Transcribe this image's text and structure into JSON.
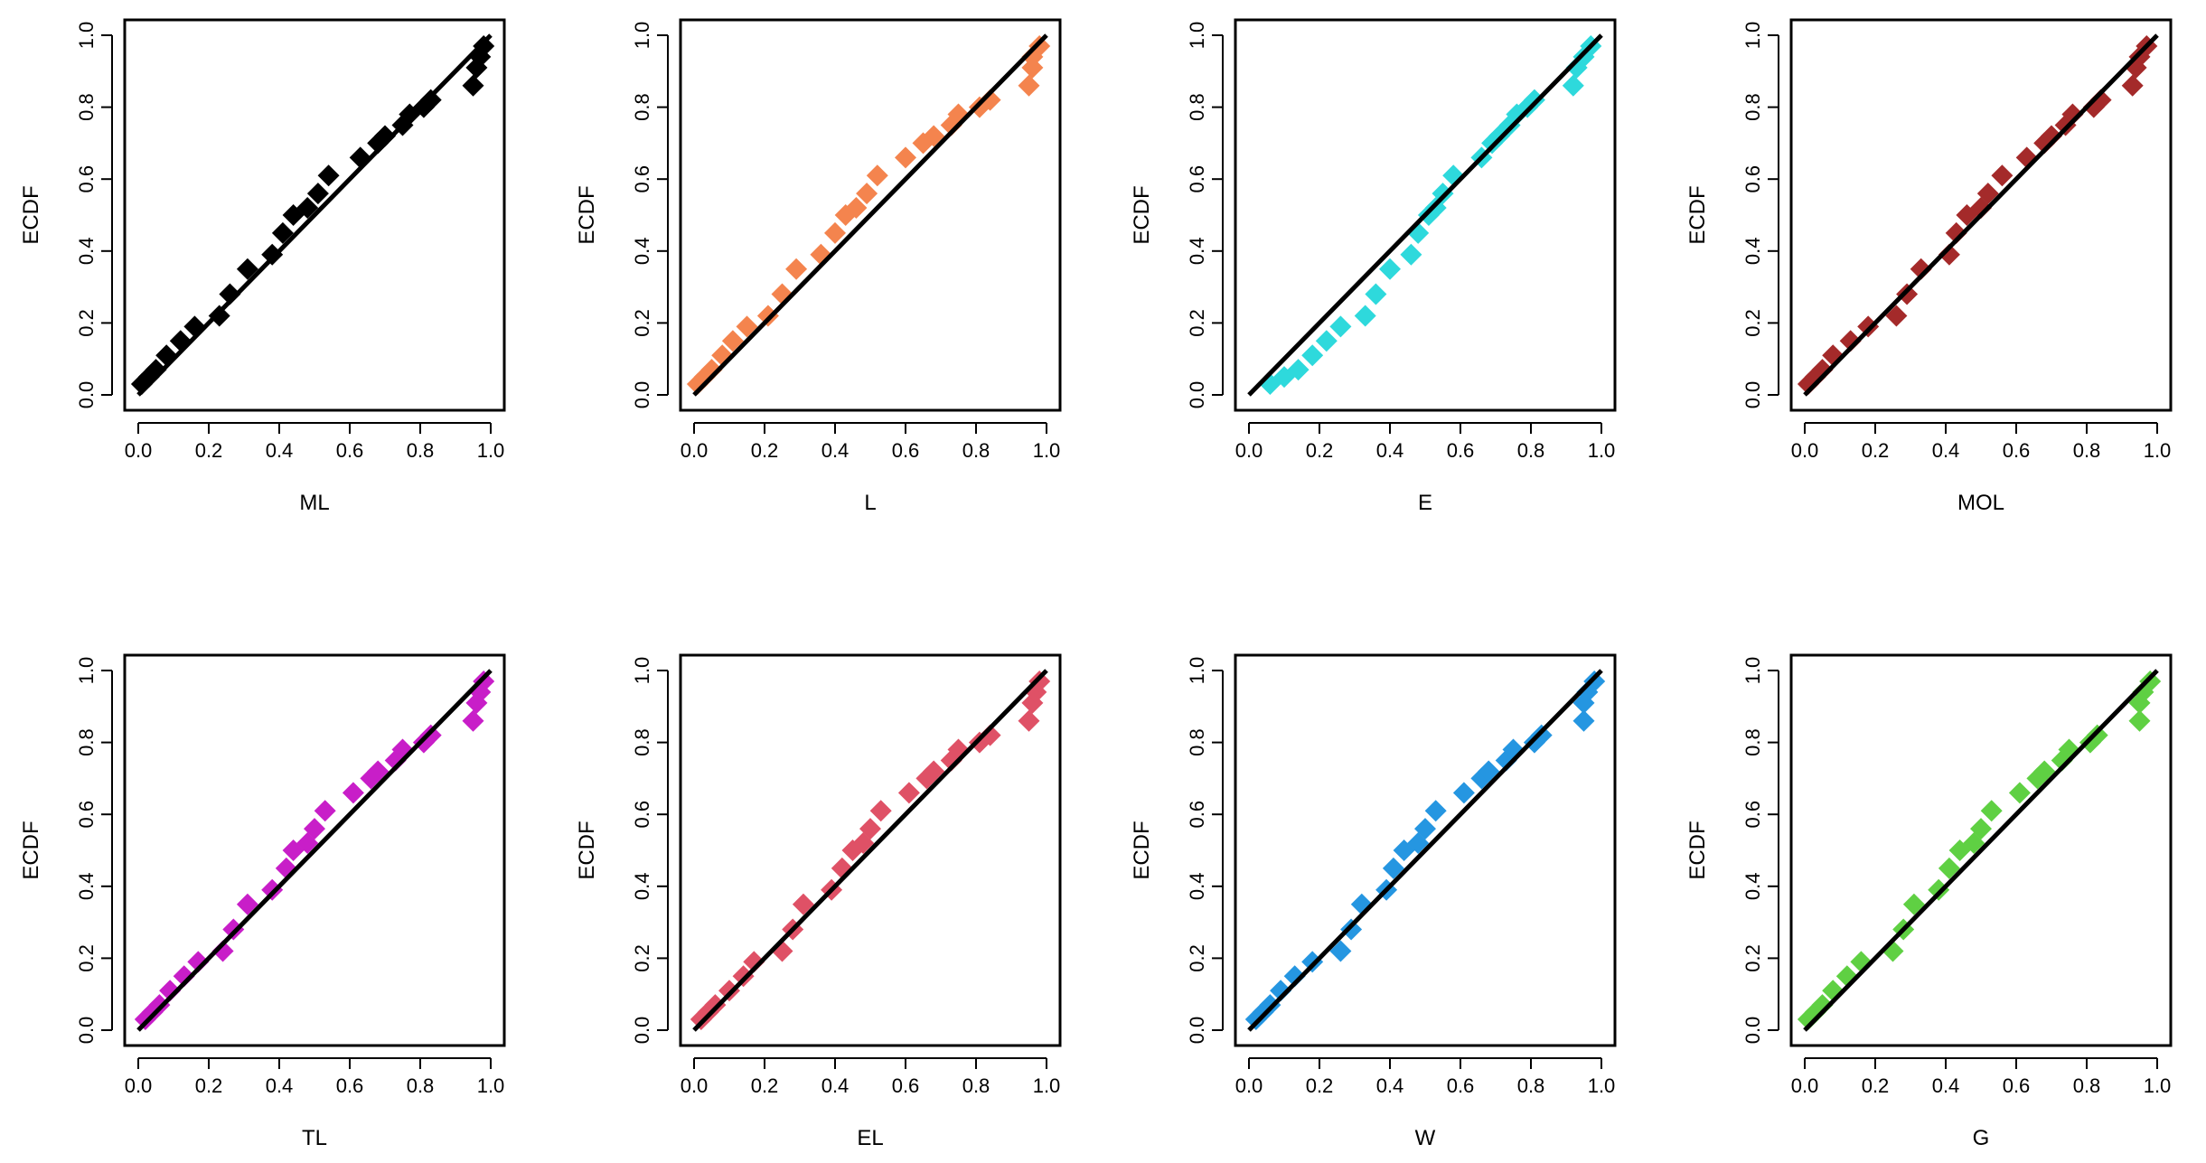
{
  "chart_data": [
    {
      "type": "scatter",
      "xlabel": "ML",
      "ylabel": "ECDF",
      "color": "#000000",
      "xlim": [
        0,
        1
      ],
      "ylim": [
        0,
        1
      ],
      "ticks": [
        "0.0",
        "0.2",
        "0.4",
        "0.6",
        "0.8",
        "1.0"
      ],
      "reference_line": "y = x",
      "x": [
        0.01,
        0.03,
        0.05,
        0.08,
        0.12,
        0.16,
        0.23,
        0.26,
        0.31,
        0.38,
        0.41,
        0.44,
        0.48,
        0.51,
        0.54,
        0.63,
        0.68,
        0.7,
        0.75,
        0.77,
        0.81,
        0.83,
        0.95,
        0.96,
        0.97,
        0.98
      ],
      "y": [
        0.03,
        0.05,
        0.07,
        0.11,
        0.15,
        0.19,
        0.22,
        0.28,
        0.35,
        0.39,
        0.45,
        0.5,
        0.52,
        0.56,
        0.61,
        0.66,
        0.7,
        0.72,
        0.75,
        0.78,
        0.8,
        0.82,
        0.86,
        0.91,
        0.94,
        0.97
      ]
    },
    {
      "type": "scatter",
      "xlabel": "L",
      "ylabel": "ECDF",
      "color": "#F4844E",
      "xlim": [
        0,
        1
      ],
      "ylim": [
        0,
        1
      ],
      "ticks": [
        "0.0",
        "0.2",
        "0.4",
        "0.6",
        "0.8",
        "1.0"
      ],
      "reference_line": "y = x",
      "x": [
        0.01,
        0.03,
        0.05,
        0.08,
        0.11,
        0.15,
        0.21,
        0.25,
        0.29,
        0.36,
        0.4,
        0.43,
        0.46,
        0.49,
        0.52,
        0.6,
        0.65,
        0.68,
        0.73,
        0.75,
        0.81,
        0.84,
        0.95,
        0.96,
        0.96,
        0.98
      ],
      "y": [
        0.03,
        0.05,
        0.07,
        0.11,
        0.15,
        0.19,
        0.22,
        0.28,
        0.35,
        0.39,
        0.45,
        0.5,
        0.52,
        0.56,
        0.61,
        0.66,
        0.7,
        0.72,
        0.75,
        0.78,
        0.8,
        0.82,
        0.86,
        0.91,
        0.94,
        0.97
      ]
    },
    {
      "type": "scatter",
      "xlabel": "E",
      "ylabel": "ECDF",
      "color": "#2ED9DC",
      "xlim": [
        0,
        1
      ],
      "ylim": [
        0,
        1
      ],
      "ticks": [
        "0.0",
        "0.2",
        "0.4",
        "0.6",
        "0.8",
        "1.0"
      ],
      "reference_line": "y = x",
      "x": [
        0.06,
        0.1,
        0.14,
        0.18,
        0.22,
        0.26,
        0.33,
        0.36,
        0.4,
        0.46,
        0.48,
        0.51,
        0.53,
        0.55,
        0.58,
        0.66,
        0.69,
        0.71,
        0.74,
        0.76,
        0.79,
        0.81,
        0.92,
        0.93,
        0.95,
        0.97
      ],
      "y": [
        0.03,
        0.05,
        0.07,
        0.11,
        0.15,
        0.19,
        0.22,
        0.28,
        0.35,
        0.39,
        0.45,
        0.5,
        0.52,
        0.56,
        0.61,
        0.66,
        0.7,
        0.72,
        0.75,
        0.78,
        0.8,
        0.82,
        0.86,
        0.91,
        0.94,
        0.97
      ]
    },
    {
      "type": "scatter",
      "xlabel": "MOL",
      "ylabel": "ECDF",
      "color": "#A42A2A",
      "xlim": [
        0,
        1
      ],
      "ylim": [
        0,
        1
      ],
      "ticks": [
        "0.0",
        "0.2",
        "0.4",
        "0.6",
        "0.8",
        "1.0"
      ],
      "reference_line": "y = x",
      "x": [
        0.01,
        0.03,
        0.05,
        0.08,
        0.13,
        0.18,
        0.26,
        0.29,
        0.33,
        0.41,
        0.43,
        0.46,
        0.5,
        0.52,
        0.56,
        0.63,
        0.68,
        0.7,
        0.74,
        0.76,
        0.82,
        0.84,
        0.93,
        0.94,
        0.95,
        0.97
      ],
      "y": [
        0.03,
        0.05,
        0.07,
        0.11,
        0.15,
        0.19,
        0.22,
        0.28,
        0.35,
        0.39,
        0.45,
        0.5,
        0.52,
        0.56,
        0.61,
        0.66,
        0.7,
        0.72,
        0.75,
        0.78,
        0.8,
        0.82,
        0.86,
        0.91,
        0.94,
        0.97
      ]
    },
    {
      "type": "scatter",
      "xlabel": "TL",
      "ylabel": "ECDF",
      "color": "#C81EC8",
      "xlim": [
        0,
        1
      ],
      "ylim": [
        0,
        1
      ],
      "ticks": [
        "0.0",
        "0.2",
        "0.4",
        "0.6",
        "0.8",
        "1.0"
      ],
      "reference_line": "y = x",
      "x": [
        0.02,
        0.04,
        0.06,
        0.09,
        0.13,
        0.17,
        0.24,
        0.27,
        0.31,
        0.38,
        0.42,
        0.44,
        0.48,
        0.5,
        0.53,
        0.61,
        0.66,
        0.68,
        0.73,
        0.75,
        0.81,
        0.83,
        0.95,
        0.96,
        0.97,
        0.98
      ],
      "y": [
        0.03,
        0.05,
        0.07,
        0.11,
        0.15,
        0.19,
        0.22,
        0.28,
        0.35,
        0.39,
        0.45,
        0.5,
        0.52,
        0.56,
        0.61,
        0.66,
        0.7,
        0.72,
        0.75,
        0.78,
        0.8,
        0.82,
        0.86,
        0.91,
        0.94,
        0.97
      ]
    },
    {
      "type": "scatter",
      "xlabel": "EL",
      "ylabel": "ECDF",
      "color": "#DF5166",
      "xlim": [
        0,
        1
      ],
      "ylim": [
        0,
        1
      ],
      "ticks": [
        "0.0",
        "0.2",
        "0.4",
        "0.6",
        "0.8",
        "1.0"
      ],
      "reference_line": "y = x",
      "x": [
        0.02,
        0.04,
        0.06,
        0.1,
        0.14,
        0.17,
        0.25,
        0.28,
        0.31,
        0.39,
        0.42,
        0.45,
        0.48,
        0.5,
        0.53,
        0.61,
        0.66,
        0.68,
        0.73,
        0.75,
        0.81,
        0.84,
        0.95,
        0.96,
        0.97,
        0.98
      ],
      "y": [
        0.03,
        0.05,
        0.07,
        0.11,
        0.15,
        0.19,
        0.22,
        0.28,
        0.35,
        0.39,
        0.45,
        0.5,
        0.52,
        0.56,
        0.61,
        0.66,
        0.7,
        0.72,
        0.75,
        0.78,
        0.8,
        0.82,
        0.86,
        0.91,
        0.94,
        0.97
      ]
    },
    {
      "type": "scatter",
      "xlabel": "W",
      "ylabel": "ECDF",
      "color": "#2596E1",
      "xlim": [
        0,
        1
      ],
      "ylim": [
        0,
        1
      ],
      "ticks": [
        "0.0",
        "0.2",
        "0.4",
        "0.6",
        "0.8",
        "1.0"
      ],
      "reference_line": "y = x",
      "x": [
        0.02,
        0.04,
        0.06,
        0.09,
        0.13,
        0.18,
        0.26,
        0.29,
        0.32,
        0.39,
        0.41,
        0.44,
        0.48,
        0.5,
        0.53,
        0.61,
        0.66,
        0.68,
        0.73,
        0.75,
        0.81,
        0.83,
        0.95,
        0.95,
        0.96,
        0.98
      ],
      "y": [
        0.03,
        0.05,
        0.07,
        0.11,
        0.15,
        0.19,
        0.22,
        0.28,
        0.35,
        0.39,
        0.45,
        0.5,
        0.52,
        0.56,
        0.61,
        0.66,
        0.7,
        0.72,
        0.75,
        0.78,
        0.8,
        0.82,
        0.86,
        0.91,
        0.94,
        0.97
      ]
    },
    {
      "type": "scatter",
      "xlabel": "G",
      "ylabel": "ECDF",
      "color": "#5FD043",
      "xlim": [
        0,
        1
      ],
      "ylim": [
        0,
        1
      ],
      "ticks": [
        "0.0",
        "0.2",
        "0.4",
        "0.6",
        "0.8",
        "1.0"
      ],
      "reference_line": "y = x",
      "x": [
        0.01,
        0.03,
        0.05,
        0.08,
        0.12,
        0.16,
        0.25,
        0.28,
        0.31,
        0.38,
        0.41,
        0.44,
        0.48,
        0.5,
        0.53,
        0.61,
        0.66,
        0.68,
        0.73,
        0.75,
        0.81,
        0.83,
        0.95,
        0.95,
        0.96,
        0.98
      ],
      "y": [
        0.03,
        0.05,
        0.07,
        0.11,
        0.15,
        0.19,
        0.22,
        0.28,
        0.35,
        0.39,
        0.45,
        0.5,
        0.52,
        0.56,
        0.61,
        0.66,
        0.7,
        0.72,
        0.75,
        0.78,
        0.8,
        0.82,
        0.86,
        0.91,
        0.94,
        0.97
      ]
    }
  ]
}
